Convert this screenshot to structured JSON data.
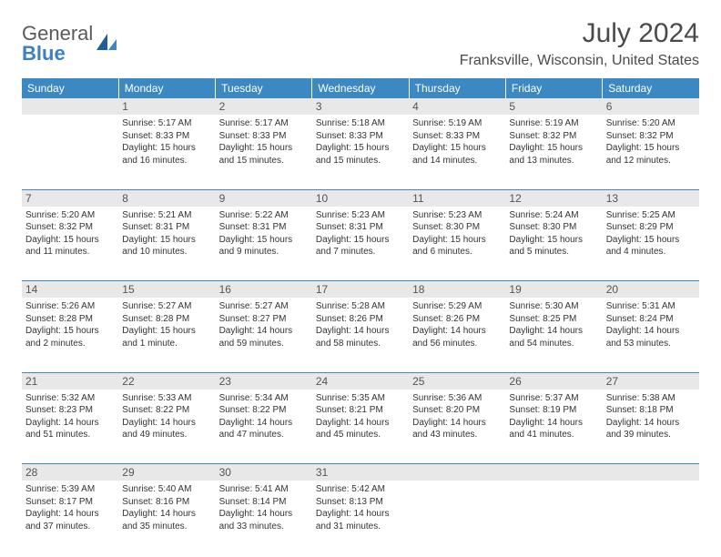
{
  "logo": {
    "general": "General",
    "blue": "Blue"
  },
  "title": "July 2024",
  "location": "Franksville, Wisconsin, United States",
  "colors": {
    "header_bg": "#3b88c3",
    "header_text": "#ffffff",
    "daynum_bg": "#e8e8e8",
    "rule": "#3b88c3",
    "logo_accent": "#3b7fc4"
  },
  "day_headers": [
    "Sunday",
    "Monday",
    "Tuesday",
    "Wednesday",
    "Thursday",
    "Friday",
    "Saturday"
  ],
  "weeks": [
    {
      "nums": [
        "",
        "1",
        "2",
        "3",
        "4",
        "5",
        "6"
      ],
      "cells": [
        null,
        {
          "sunrise": "Sunrise: 5:17 AM",
          "sunset": "Sunset: 8:33 PM",
          "daylight": "Daylight: 15 hours and 16 minutes."
        },
        {
          "sunrise": "Sunrise: 5:17 AM",
          "sunset": "Sunset: 8:33 PM",
          "daylight": "Daylight: 15 hours and 15 minutes."
        },
        {
          "sunrise": "Sunrise: 5:18 AM",
          "sunset": "Sunset: 8:33 PM",
          "daylight": "Daylight: 15 hours and 15 minutes."
        },
        {
          "sunrise": "Sunrise: 5:19 AM",
          "sunset": "Sunset: 8:33 PM",
          "daylight": "Daylight: 15 hours and 14 minutes."
        },
        {
          "sunrise": "Sunrise: 5:19 AM",
          "sunset": "Sunset: 8:32 PM",
          "daylight": "Daylight: 15 hours and 13 minutes."
        },
        {
          "sunrise": "Sunrise: 5:20 AM",
          "sunset": "Sunset: 8:32 PM",
          "daylight": "Daylight: 15 hours and 12 minutes."
        }
      ]
    },
    {
      "nums": [
        "7",
        "8",
        "9",
        "10",
        "11",
        "12",
        "13"
      ],
      "cells": [
        {
          "sunrise": "Sunrise: 5:20 AM",
          "sunset": "Sunset: 8:32 PM",
          "daylight": "Daylight: 15 hours and 11 minutes."
        },
        {
          "sunrise": "Sunrise: 5:21 AM",
          "sunset": "Sunset: 8:31 PM",
          "daylight": "Daylight: 15 hours and 10 minutes."
        },
        {
          "sunrise": "Sunrise: 5:22 AM",
          "sunset": "Sunset: 8:31 PM",
          "daylight": "Daylight: 15 hours and 9 minutes."
        },
        {
          "sunrise": "Sunrise: 5:23 AM",
          "sunset": "Sunset: 8:31 PM",
          "daylight": "Daylight: 15 hours and 7 minutes."
        },
        {
          "sunrise": "Sunrise: 5:23 AM",
          "sunset": "Sunset: 8:30 PM",
          "daylight": "Daylight: 15 hours and 6 minutes."
        },
        {
          "sunrise": "Sunrise: 5:24 AM",
          "sunset": "Sunset: 8:30 PM",
          "daylight": "Daylight: 15 hours and 5 minutes."
        },
        {
          "sunrise": "Sunrise: 5:25 AM",
          "sunset": "Sunset: 8:29 PM",
          "daylight": "Daylight: 15 hours and 4 minutes."
        }
      ]
    },
    {
      "nums": [
        "14",
        "15",
        "16",
        "17",
        "18",
        "19",
        "20"
      ],
      "cells": [
        {
          "sunrise": "Sunrise: 5:26 AM",
          "sunset": "Sunset: 8:28 PM",
          "daylight": "Daylight: 15 hours and 2 minutes."
        },
        {
          "sunrise": "Sunrise: 5:27 AM",
          "sunset": "Sunset: 8:28 PM",
          "daylight": "Daylight: 15 hours and 1 minute."
        },
        {
          "sunrise": "Sunrise: 5:27 AM",
          "sunset": "Sunset: 8:27 PM",
          "daylight": "Daylight: 14 hours and 59 minutes."
        },
        {
          "sunrise": "Sunrise: 5:28 AM",
          "sunset": "Sunset: 8:26 PM",
          "daylight": "Daylight: 14 hours and 58 minutes."
        },
        {
          "sunrise": "Sunrise: 5:29 AM",
          "sunset": "Sunset: 8:26 PM",
          "daylight": "Daylight: 14 hours and 56 minutes."
        },
        {
          "sunrise": "Sunrise: 5:30 AM",
          "sunset": "Sunset: 8:25 PM",
          "daylight": "Daylight: 14 hours and 54 minutes."
        },
        {
          "sunrise": "Sunrise: 5:31 AM",
          "sunset": "Sunset: 8:24 PM",
          "daylight": "Daylight: 14 hours and 53 minutes."
        }
      ]
    },
    {
      "nums": [
        "21",
        "22",
        "23",
        "24",
        "25",
        "26",
        "27"
      ],
      "cells": [
        {
          "sunrise": "Sunrise: 5:32 AM",
          "sunset": "Sunset: 8:23 PM",
          "daylight": "Daylight: 14 hours and 51 minutes."
        },
        {
          "sunrise": "Sunrise: 5:33 AM",
          "sunset": "Sunset: 8:22 PM",
          "daylight": "Daylight: 14 hours and 49 minutes."
        },
        {
          "sunrise": "Sunrise: 5:34 AM",
          "sunset": "Sunset: 8:22 PM",
          "daylight": "Daylight: 14 hours and 47 minutes."
        },
        {
          "sunrise": "Sunrise: 5:35 AM",
          "sunset": "Sunset: 8:21 PM",
          "daylight": "Daylight: 14 hours and 45 minutes."
        },
        {
          "sunrise": "Sunrise: 5:36 AM",
          "sunset": "Sunset: 8:20 PM",
          "daylight": "Daylight: 14 hours and 43 minutes."
        },
        {
          "sunrise": "Sunrise: 5:37 AM",
          "sunset": "Sunset: 8:19 PM",
          "daylight": "Daylight: 14 hours and 41 minutes."
        },
        {
          "sunrise": "Sunrise: 5:38 AM",
          "sunset": "Sunset: 8:18 PM",
          "daylight": "Daylight: 14 hours and 39 minutes."
        }
      ]
    },
    {
      "nums": [
        "28",
        "29",
        "30",
        "31",
        "",
        "",
        ""
      ],
      "cells": [
        {
          "sunrise": "Sunrise: 5:39 AM",
          "sunset": "Sunset: 8:17 PM",
          "daylight": "Daylight: 14 hours and 37 minutes."
        },
        {
          "sunrise": "Sunrise: 5:40 AM",
          "sunset": "Sunset: 8:16 PM",
          "daylight": "Daylight: 14 hours and 35 minutes."
        },
        {
          "sunrise": "Sunrise: 5:41 AM",
          "sunset": "Sunset: 8:14 PM",
          "daylight": "Daylight: 14 hours and 33 minutes."
        },
        {
          "sunrise": "Sunrise: 5:42 AM",
          "sunset": "Sunset: 8:13 PM",
          "daylight": "Daylight: 14 hours and 31 minutes."
        },
        null,
        null,
        null
      ]
    }
  ]
}
